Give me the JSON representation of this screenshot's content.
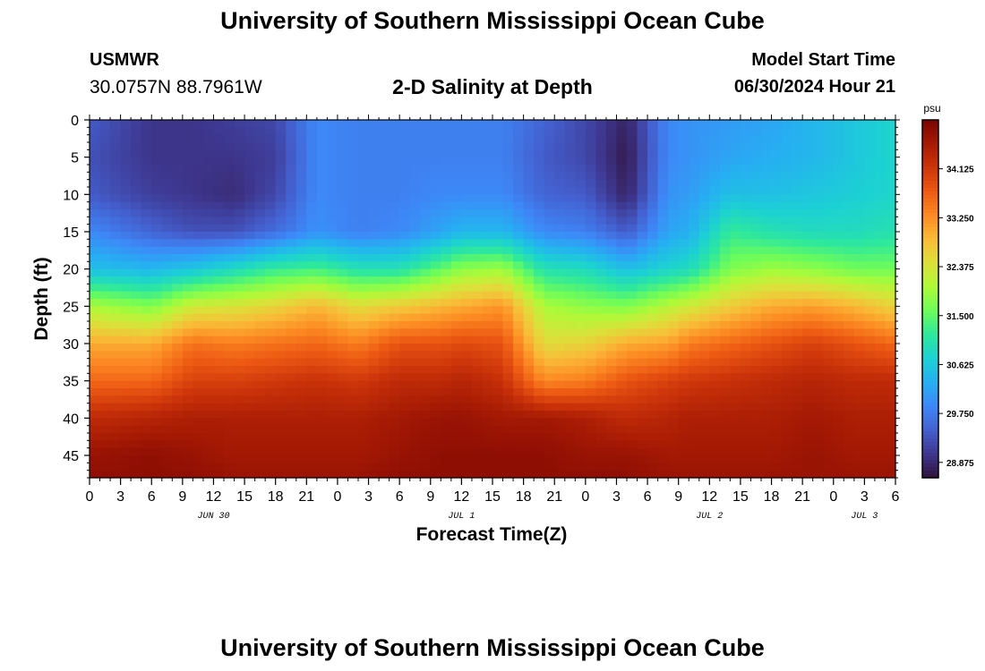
{
  "header": {
    "title": "University of Southern Mississippi Ocean Cube",
    "station_id": "USMWR",
    "coordinates": "30.0757N  88.7961W",
    "plot_title": "2-D Salinity at Depth",
    "model_start_label": "Model Start Time",
    "model_start_value": "06/30/2024 Hour 21"
  },
  "footer": {
    "title": "University of Southern Mississippi Ocean Cube"
  },
  "colors": {
    "ramp": [
      "#30123b",
      "#3e378f",
      "#4460cf",
      "#3e87f7",
      "#26aff2",
      "#1cd1d3",
      "#2ee89c",
      "#6efc59",
      "#aefa38",
      "#dce03a",
      "#f9bb38",
      "#fc8a23",
      "#ed5a13",
      "#cc340a",
      "#a61a04",
      "#7a0403"
    ]
  },
  "chart_data": {
    "type": "heatmap",
    "title": "2-D Salinity at Depth",
    "xlabel": "Forecast Time(Z)",
    "ylabel": "Depth (ft)",
    "x_range_hours": [
      0,
      78
    ],
    "x_tick_labels": [
      "0",
      "3",
      "6",
      "9",
      "12",
      "15",
      "18",
      "21",
      "0",
      "3",
      "6",
      "9",
      "12",
      "15",
      "18",
      "21",
      "0",
      "3",
      "6",
      "9",
      "12",
      "15",
      "18",
      "21",
      "0",
      "3",
      "6"
    ],
    "date_labels": [
      {
        "label": "JUN 30",
        "hour": 12
      },
      {
        "label": "JUL 1",
        "hour": 36
      },
      {
        "label": "JUL 2",
        "hour": 60
      },
      {
        "label": "JUL 3",
        "hour": 75
      }
    ],
    "y_range_ft": [
      0,
      48
    ],
    "y_ticks": [
      0,
      5,
      10,
      15,
      20,
      25,
      30,
      35,
      40,
      45
    ],
    "colorbar": {
      "unit": "psu",
      "range": [
        28.6,
        35.0
      ],
      "tick_values": [
        34.125,
        33.25,
        32.375,
        31.5,
        30.625,
        29.75,
        28.875
      ],
      "tick_labels": [
        "34.125",
        "33.250",
        "32.375",
        "31.500",
        "30.625",
        "29.750",
        "28.875"
      ]
    },
    "profile_hours": [
      0,
      6,
      10,
      14,
      18,
      22,
      26,
      30,
      34,
      36,
      40,
      44,
      48,
      52,
      56,
      58,
      62,
      66,
      70,
      74,
      78
    ],
    "profile_depths_ft": [
      0,
      5,
      10,
      15,
      20,
      25,
      30,
      35,
      40,
      45,
      48
    ],
    "salinity_profiles": [
      [
        29.4,
        29.3,
        29.4,
        29.9,
        30.5,
        32.0,
        33.0,
        33.6,
        34.3,
        34.7,
        34.8
      ],
      [
        29.0,
        29.0,
        29.1,
        29.5,
        30.4,
        31.7,
        33.0,
        33.6,
        34.4,
        34.8,
        34.8
      ],
      [
        29.0,
        29.0,
        29.0,
        29.3,
        30.6,
        32.3,
        33.5,
        34.0,
        34.5,
        34.7,
        34.8
      ],
      [
        29.1,
        29.0,
        28.9,
        29.3,
        30.9,
        32.4,
        33.4,
        34.0,
        34.5,
        34.6,
        34.7
      ],
      [
        29.2,
        29.1,
        29.2,
        29.6,
        31.2,
        32.6,
        33.5,
        34.1,
        34.5,
        34.6,
        34.7
      ],
      [
        29.9,
        29.9,
        29.9,
        30.0,
        31.3,
        32.9,
        33.6,
        34.2,
        34.5,
        34.6,
        34.7
      ],
      [
        29.8,
        29.8,
        29.8,
        29.8,
        31.0,
        32.5,
        33.4,
        34.1,
        34.5,
        34.6,
        34.7
      ],
      [
        29.8,
        29.8,
        29.8,
        29.9,
        31.0,
        32.7,
        33.8,
        34.3,
        34.6,
        34.7,
        34.8
      ],
      [
        29.8,
        29.8,
        29.9,
        30.2,
        31.5,
        32.9,
        33.8,
        34.3,
        34.7,
        34.8,
        34.8
      ],
      [
        29.8,
        29.8,
        29.9,
        30.4,
        31.8,
        33.0,
        33.9,
        34.4,
        34.7,
        34.8,
        34.8
      ],
      [
        29.8,
        29.8,
        29.9,
        30.4,
        31.9,
        33.2,
        33.8,
        34.2,
        34.6,
        34.8,
        34.8
      ],
      [
        29.5,
        29.4,
        29.5,
        29.9,
        31.0,
        32.0,
        32.5,
        33.3,
        34.6,
        34.8,
        34.8
      ],
      [
        29.2,
        29.2,
        29.4,
        29.8,
        30.9,
        31.8,
        32.6,
        33.4,
        34.5,
        34.7,
        34.8
      ],
      [
        28.8,
        28.7,
        28.8,
        29.4,
        30.5,
        31.7,
        33.0,
        33.8,
        34.3,
        34.7,
        34.8
      ],
      [
        29.9,
        29.9,
        30.0,
        30.2,
        30.8,
        32.1,
        33.1,
        34.0,
        34.4,
        34.6,
        34.7
      ],
      [
        30.0,
        30.0,
        30.1,
        30.3,
        30.9,
        32.3,
        33.4,
        34.1,
        34.5,
        34.6,
        34.7
      ],
      [
        30.1,
        30.2,
        30.5,
        31.2,
        31.7,
        32.7,
        33.6,
        34.2,
        34.5,
        34.6,
        34.7
      ],
      [
        30.2,
        30.3,
        30.5,
        31.0,
        31.9,
        33.0,
        33.8,
        34.3,
        34.5,
        34.6,
        34.7
      ],
      [
        30.4,
        30.4,
        30.6,
        30.9,
        31.8,
        33.1,
        34.0,
        34.4,
        34.6,
        34.7,
        34.7
      ],
      [
        30.6,
        30.6,
        30.7,
        30.9,
        31.6,
        32.9,
        33.8,
        34.3,
        34.5,
        34.6,
        34.7
      ],
      [
        30.8,
        30.8,
        30.8,
        31.0,
        31.6,
        32.6,
        33.6,
        34.3,
        34.5,
        34.6,
        34.7
      ]
    ]
  }
}
